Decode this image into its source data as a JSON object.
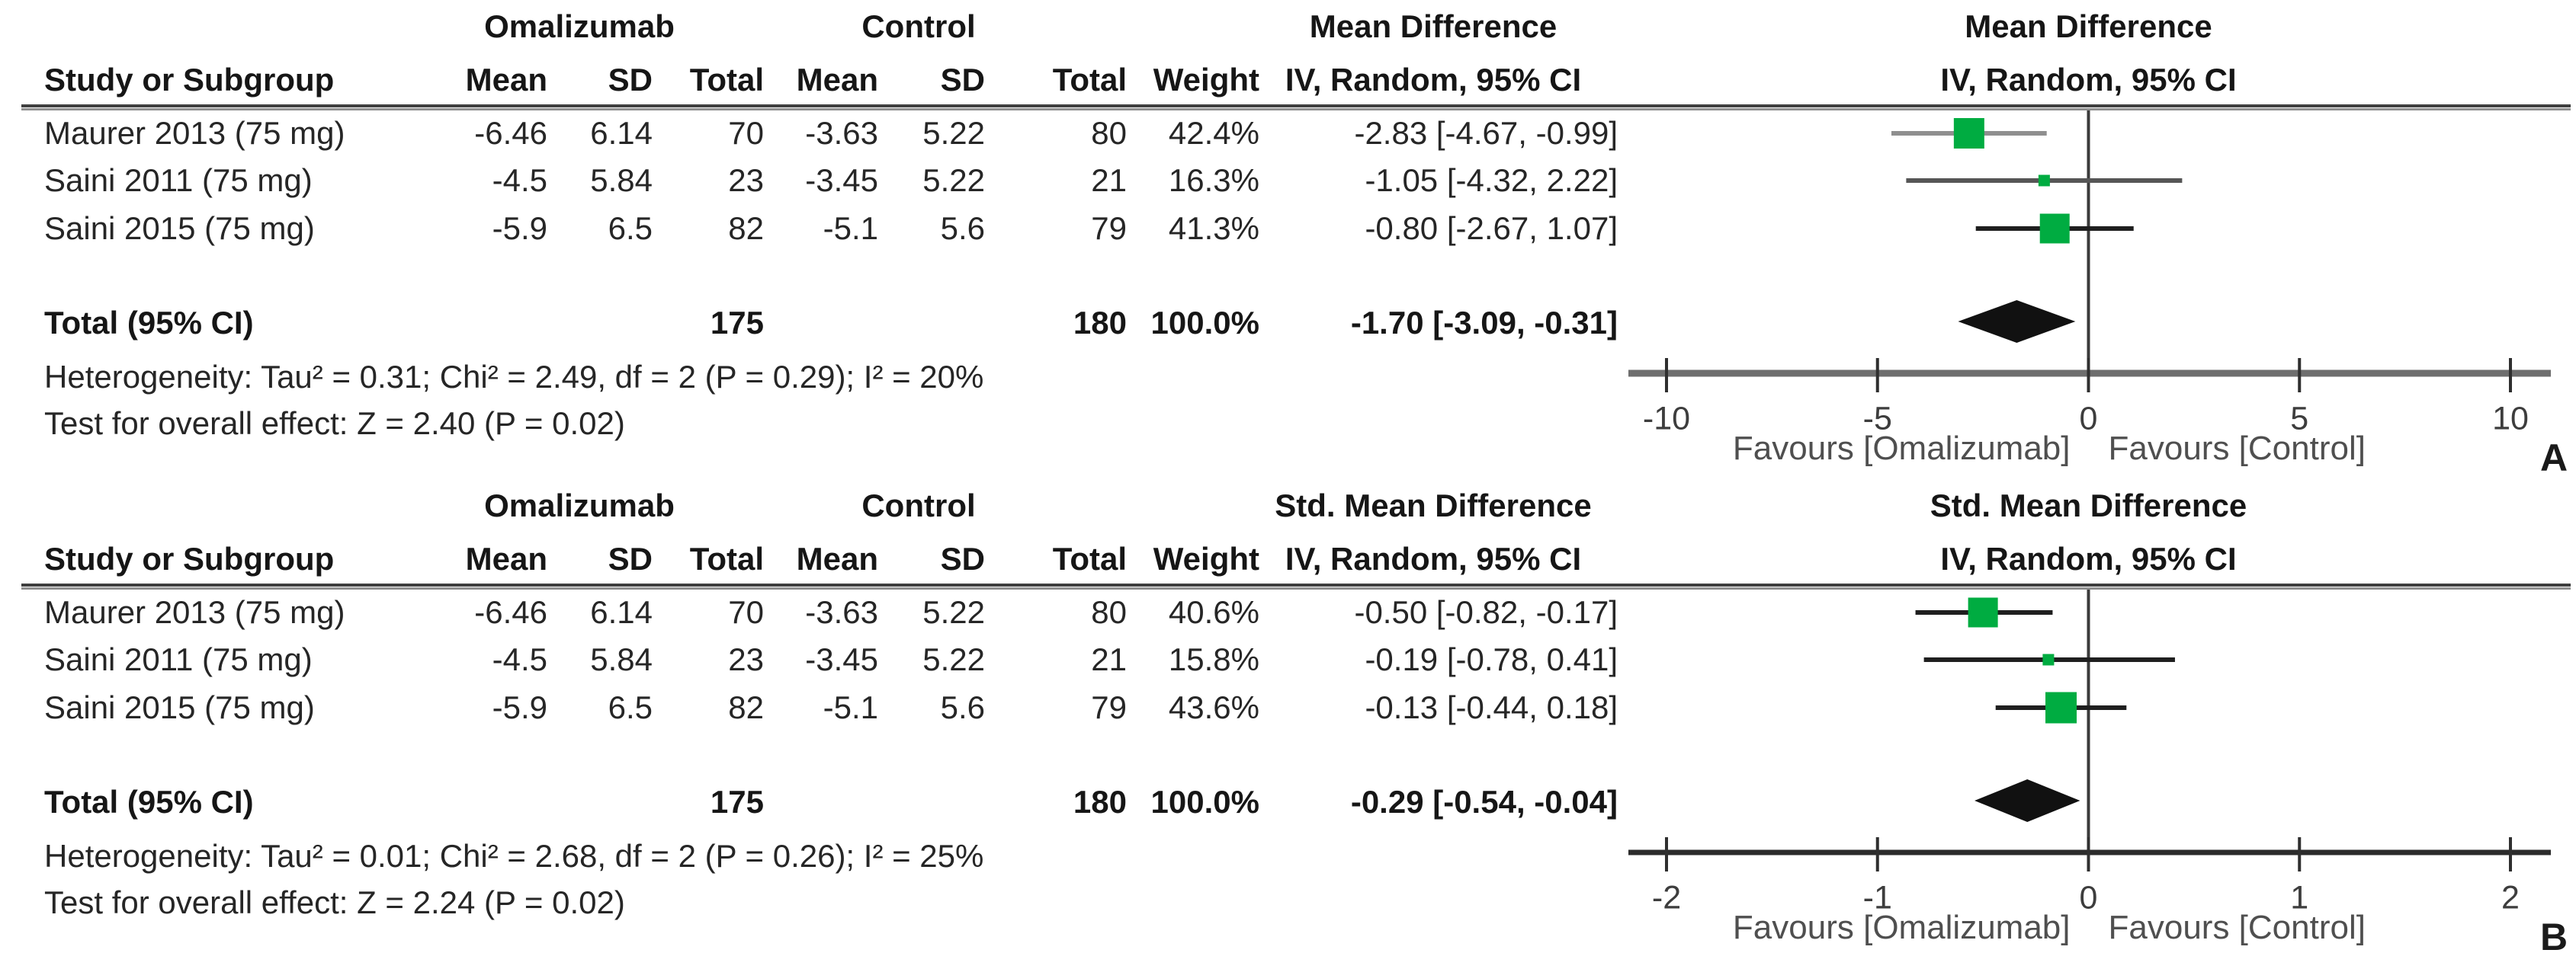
{
  "figure_title": "Forest plot: Omalizumab vs Control",
  "colors": {
    "square": "#00AC41",
    "diamond": "#111111",
    "zero_line": "#3a3a3a",
    "tick": "#2f2f2f",
    "rule": "#3f3f3f",
    "text": "#262626"
  },
  "chart_data": {
    "type": "forest",
    "panels": [
      {
        "letter": "A",
        "group1": "Omalizumab",
        "group2": "Control",
        "effect_title": "Mean Difference",
        "method": "IV, Random, 95% CI",
        "headers": {
          "study": "Study or Subgroup",
          "mean": "Mean",
          "sd": "SD",
          "total": "Total",
          "weight": "Weight"
        },
        "axis": {
          "min": -10,
          "max": 10,
          "ticks": [
            "-10",
            "-5",
            "0",
            "5",
            "10"
          ],
          "axis_color": "#6e6e6e",
          "axis_width": 9
        },
        "favours_left": "Favours [Omalizumab]",
        "favours_right": "Favours [Control]",
        "studies": [
          {
            "name": "Maurer 2013 (75 mg)",
            "mean1": "-6.46",
            "sd1": "6.14",
            "n1": "70",
            "mean2": "-3.63",
            "sd2": "5.22",
            "n2": "80",
            "weight": "42.4%",
            "effect_text": "-2.83 [-4.67, -0.99]",
            "est": -2.83,
            "lo": -4.67,
            "hi": -0.99,
            "line_color": "#8f8f8f"
          },
          {
            "name": "Saini 2011 (75 mg)",
            "mean1": "-4.5",
            "sd1": "5.84",
            "n1": "23",
            "mean2": "-3.45",
            "sd2": "5.22",
            "n2": "21",
            "weight": "16.3%",
            "effect_text": "-1.05 [-4.32, 2.22]",
            "est": -1.05,
            "lo": -4.32,
            "hi": 2.22,
            "line_color": "#565656"
          },
          {
            "name": "Saini 2015 (75 mg)",
            "mean1": "-5.9",
            "sd1": "6.5",
            "n1": "82",
            "mean2": "-5.1",
            "sd2": "5.6",
            "n2": "79",
            "weight": "41.3%",
            "effect_text": "-0.80 [-2.67, 1.07]",
            "est": -0.8,
            "lo": -2.67,
            "hi": 1.07,
            "line_color": "#1f1f1f"
          }
        ],
        "total": {
          "label": "Total (95% CI)",
          "n1": "175",
          "n2": "180",
          "weight": "100.0%",
          "effect_text": "-1.70 [-3.09, -0.31]",
          "est": -1.7,
          "lo": -3.09,
          "hi": -0.31
        },
        "heterogeneity": "Heterogeneity: Tau² = 0.31; Chi² = 2.49, df = 2 (P = 0.29); I² = 20%",
        "overall_effect": "Test for overall effect: Z = 2.40 (P = 0.02)"
      },
      {
        "letter": "B",
        "group1": "Omalizumab",
        "group2": "Control",
        "effect_title": "Std. Mean Difference",
        "method": "IV, Random, 95% CI",
        "headers": {
          "study": "Study or Subgroup",
          "mean": "Mean",
          "sd": "SD",
          "total": "Total",
          "weight": "Weight"
        },
        "axis": {
          "min": -2,
          "max": 2,
          "ticks": [
            "-2",
            "-1",
            "0",
            "1",
            "2"
          ],
          "axis_color": "#2b2b2b",
          "axis_width": 7
        },
        "favours_left": "Favours [Omalizumab]",
        "favours_right": "Favours [Control]",
        "studies": [
          {
            "name": "Maurer 2013 (75 mg)",
            "mean1": "-6.46",
            "sd1": "6.14",
            "n1": "70",
            "mean2": "-3.63",
            "sd2": "5.22",
            "n2": "80",
            "weight": "40.6%",
            "effect_text": "-0.50 [-0.82, -0.17]",
            "est": -0.5,
            "lo": -0.82,
            "hi": -0.17,
            "line_color": "#1f1f1f"
          },
          {
            "name": "Saini 2011 (75 mg)",
            "mean1": "-4.5",
            "sd1": "5.84",
            "n1": "23",
            "mean2": "-3.45",
            "sd2": "5.22",
            "n2": "21",
            "weight": "15.8%",
            "effect_text": "-0.19 [-0.78, 0.41]",
            "est": -0.19,
            "lo": -0.78,
            "hi": 0.41,
            "line_color": "#1f1f1f"
          },
          {
            "name": "Saini 2015 (75 mg)",
            "mean1": "-5.9",
            "sd1": "6.5",
            "n1": "82",
            "mean2": "-5.1",
            "sd2": "5.6",
            "n2": "79",
            "weight": "43.6%",
            "effect_text": "-0.13 [-0.44, 0.18]",
            "est": -0.13,
            "lo": -0.44,
            "hi": 0.18,
            "line_color": "#1f1f1f"
          }
        ],
        "total": {
          "label": "Total (95% CI)",
          "n1": "175",
          "n2": "180",
          "weight": "100.0%",
          "effect_text": "-0.29 [-0.54, -0.04]",
          "est": -0.29,
          "lo": -0.54,
          "hi": -0.04
        },
        "heterogeneity": "Heterogeneity: Tau² = 0.01; Chi² = 2.68, df = 2 (P = 0.26); I² = 25%",
        "overall_effect": "Test for overall effect: Z = 2.24 (P = 0.02)"
      }
    ]
  }
}
